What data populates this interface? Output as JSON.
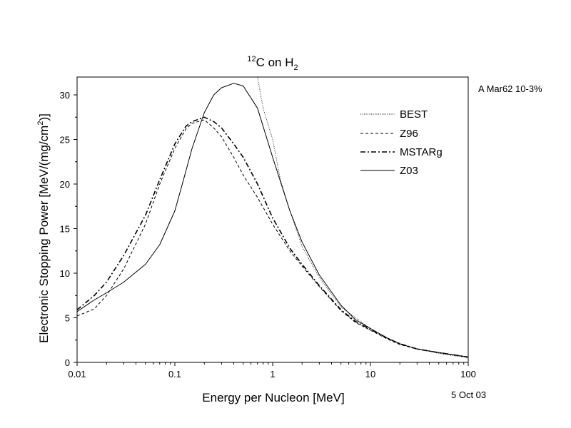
{
  "chart_data": {
    "type": "line",
    "title": {
      "base": "C on H",
      "sup": "12",
      "sub": "2"
    },
    "xlabel": "Energy per Nucleon [MeV]",
    "ylabel": {
      "main": "Electronic Stopping Power [MeV/(mg/cm",
      "sup": "2",
      "end": ")]"
    },
    "xscale": "log",
    "xlim": [
      0.01,
      100
    ],
    "ylim": [
      0,
      32
    ],
    "x_ticks": [
      {
        "value": 0.01,
        "label": "0.01"
      },
      {
        "value": 0.1,
        "label": "0.1"
      },
      {
        "value": 1,
        "label": "1"
      },
      {
        "value": 10,
        "label": "10"
      },
      {
        "value": 100,
        "label": "100"
      }
    ],
    "y_ticks": [
      {
        "value": 0,
        "label": "0"
      },
      {
        "value": 5,
        "label": "5"
      },
      {
        "value": 10,
        "label": "10"
      },
      {
        "value": 15,
        "label": "15"
      },
      {
        "value": 20,
        "label": "20"
      },
      {
        "value": 25,
        "label": "25"
      },
      {
        "value": 30,
        "label": "30"
      }
    ],
    "legend_position": "upper-right",
    "series": [
      {
        "name": "BEST",
        "style": "dotted",
        "x": [
          0.7,
          0.8,
          1.0,
          1.2,
          1.5,
          2,
          3,
          5,
          10,
          20,
          50,
          100
        ],
        "y": [
          32.0,
          28.5,
          25.0,
          20.5,
          17.0,
          13.0,
          9.5,
          6.2,
          3.8,
          2.0,
          1.0,
          0.5
        ]
      },
      {
        "name": "Z96",
        "style": "dashed",
        "x": [
          0.01,
          0.015,
          0.02,
          0.03,
          0.05,
          0.07,
          0.1,
          0.13,
          0.15,
          0.2,
          0.25,
          0.3,
          0.4,
          0.5,
          0.7,
          1.0,
          1.5,
          2,
          3,
          5,
          7,
          10,
          15,
          20,
          30,
          50,
          100
        ],
        "y": [
          5.2,
          6.0,
          7.5,
          10.5,
          15.5,
          20.0,
          24.0,
          26.2,
          26.8,
          27.2,
          26.3,
          25.3,
          23.0,
          21.0,
          18.5,
          15.5,
          12.5,
          10.8,
          8.5,
          5.8,
          4.5,
          3.6,
          2.6,
          2.0,
          1.5,
          1.1,
          0.6
        ]
      },
      {
        "name": "MSTARg",
        "style": "dashdot",
        "x": [
          0.01,
          0.015,
          0.02,
          0.03,
          0.05,
          0.07,
          0.1,
          0.13,
          0.15,
          0.2,
          0.25,
          0.3,
          0.4,
          0.5,
          0.7,
          1.0,
          1.5,
          2,
          3,
          5,
          7,
          10,
          15,
          20,
          30,
          50,
          100
        ],
        "y": [
          5.9,
          7.5,
          9.0,
          12.0,
          16.5,
          20.5,
          24.5,
          26.5,
          27.0,
          27.5,
          27.0,
          26.3,
          24.5,
          23.0,
          20.0,
          16.2,
          12.8,
          11.0,
          8.6,
          5.9,
          4.6,
          3.7,
          2.7,
          2.1,
          1.5,
          1.1,
          0.6
        ]
      },
      {
        "name": "Z03",
        "style": "solid",
        "x": [
          0.01,
          0.015,
          0.02,
          0.03,
          0.05,
          0.07,
          0.1,
          0.13,
          0.15,
          0.2,
          0.25,
          0.3,
          0.4,
          0.5,
          0.7,
          1.0,
          1.5,
          2,
          3,
          5,
          7,
          10,
          15,
          20,
          30,
          50,
          100
        ],
        "y": [
          5.7,
          7.0,
          7.8,
          9.0,
          11.0,
          13.2,
          17.0,
          21.5,
          24.0,
          28.0,
          30.0,
          30.8,
          31.3,
          31.0,
          28.5,
          23.0,
          17.0,
          13.5,
          9.8,
          6.4,
          4.8,
          3.8,
          2.7,
          2.1,
          1.5,
          1.1,
          0.6
        ]
      }
    ]
  },
  "annotations": {
    "dataset": "A Mar62 10-3%",
    "date": "5 Oct 03"
  }
}
